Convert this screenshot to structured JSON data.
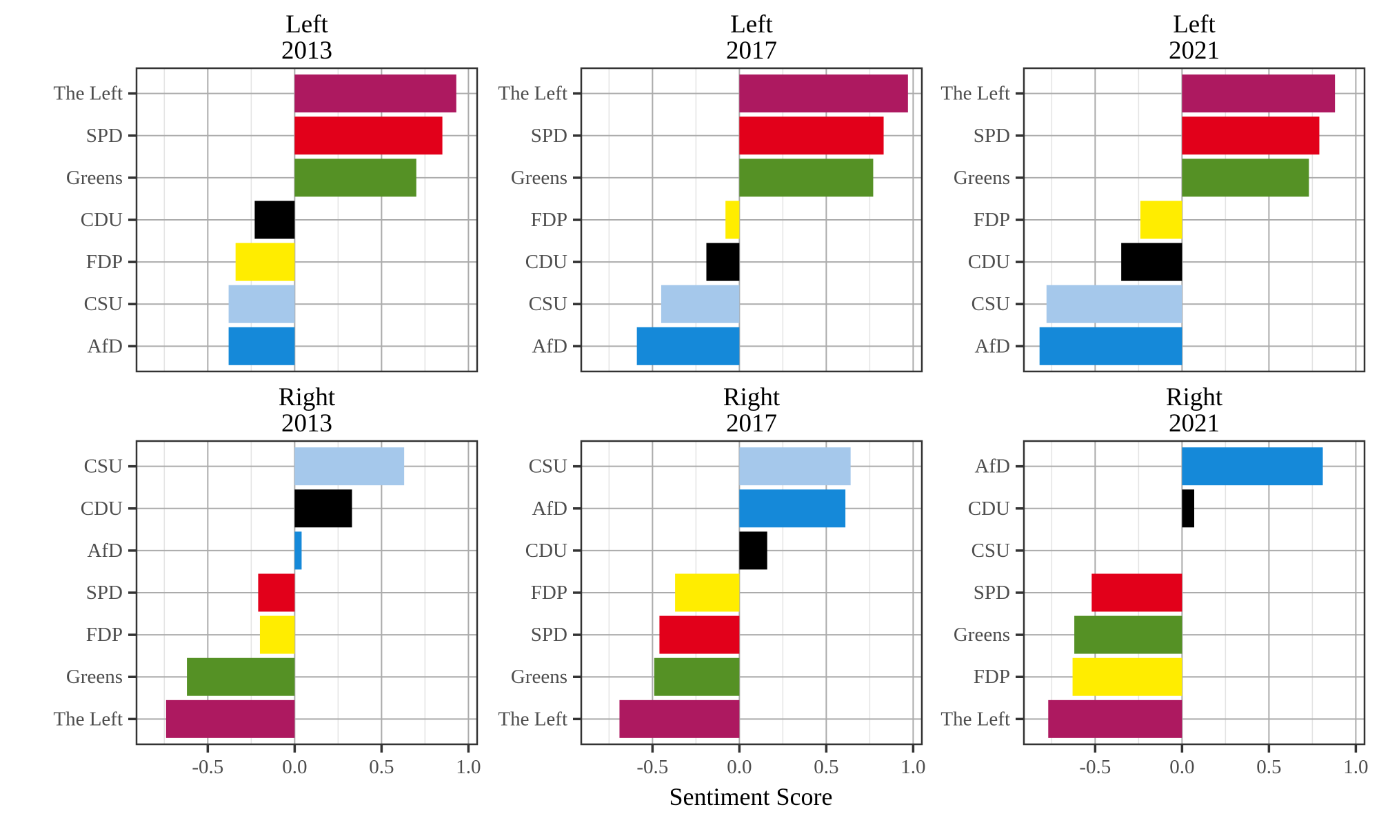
{
  "chart_data": {
    "type": "bar",
    "orientation": "horizontal",
    "xlabel": "Sentiment Score",
    "ylabel": "",
    "xlim": [
      -0.91,
      1.05
    ],
    "x_ticks": [
      -0.5,
      0.0,
      0.5,
      1.0
    ],
    "x_tick_labels": [
      "-0.5",
      "0.0",
      "0.5",
      "1.0"
    ],
    "x_minor_ticks": [
      -0.75,
      -0.25,
      0.25,
      0.75
    ],
    "grid": true,
    "legend": "none",
    "party_colors": {
      "The Left": "#AD1960",
      "SPD": "#E2001A",
      "Greens": "#559125",
      "CDU": "#000000",
      "FDP": "#FFED00",
      "CSU": "#A5C8EB",
      "AfD": "#1589D9"
    },
    "panels": [
      {
        "title_line1": "Left",
        "title_line2": "2013",
        "categories": [
          "The Left",
          "SPD",
          "Greens",
          "CDU",
          "FDP",
          "CSU",
          "AfD"
        ],
        "values": [
          0.93,
          0.85,
          0.7,
          -0.23,
          -0.34,
          -0.38,
          -0.38
        ]
      },
      {
        "title_line1": "Left",
        "title_line2": "2017",
        "categories": [
          "The Left",
          "SPD",
          "Greens",
          "FDP",
          "CDU",
          "CSU",
          "AfD"
        ],
        "values": [
          0.97,
          0.83,
          0.77,
          -0.08,
          -0.19,
          -0.45,
          -0.59
        ]
      },
      {
        "title_line1": "Left",
        "title_line2": "2021",
        "categories": [
          "The Left",
          "SPD",
          "Greens",
          "FDP",
          "CDU",
          "CSU",
          "AfD"
        ],
        "values": [
          0.88,
          0.79,
          0.73,
          -0.24,
          -0.35,
          -0.78,
          -0.82
        ]
      },
      {
        "title_line1": "Right",
        "title_line2": "2013",
        "categories": [
          "CSU",
          "CDU",
          "AfD",
          "SPD",
          "FDP",
          "Greens",
          "The Left"
        ],
        "values": [
          0.63,
          0.33,
          0.04,
          -0.21,
          -0.2,
          -0.62,
          -0.74
        ]
      },
      {
        "title_line1": "Right",
        "title_line2": "2017",
        "categories": [
          "CSU",
          "AfD",
          "CDU",
          "FDP",
          "SPD",
          "Greens",
          "The Left"
        ],
        "values": [
          0.64,
          0.61,
          0.16,
          -0.37,
          -0.46,
          -0.49,
          -0.69
        ]
      },
      {
        "title_line1": "Right",
        "title_line2": "2021",
        "categories": [
          "AfD",
          "CDU",
          "CSU",
          "SPD",
          "Greens",
          "FDP",
          "The Left"
        ],
        "values": [
          0.81,
          0.07,
          0.0,
          -0.52,
          -0.62,
          -0.63,
          -0.77
        ]
      }
    ]
  }
}
